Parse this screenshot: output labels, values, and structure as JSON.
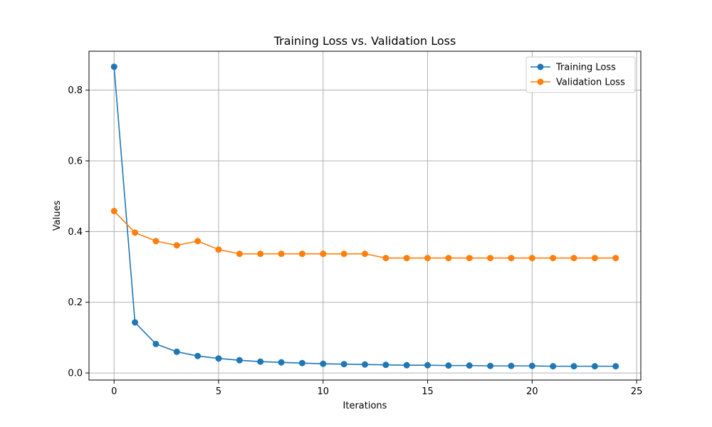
{
  "chart_data": {
    "type": "line",
    "title": "Training Loss vs. Validation Loss",
    "xlabel": "Iterations",
    "ylabel": "Values",
    "x": [
      0,
      1,
      2,
      3,
      4,
      5,
      6,
      7,
      8,
      9,
      10,
      11,
      12,
      13,
      14,
      15,
      16,
      17,
      18,
      19,
      20,
      21,
      22,
      23,
      24
    ],
    "xlim": [
      -1.2,
      25.2
    ],
    "ylim": [
      -0.02,
      0.91
    ],
    "xticks": [
      0,
      5,
      10,
      15,
      20,
      25
    ],
    "yticks": [
      0.0,
      0.2,
      0.4,
      0.6,
      0.8
    ],
    "xtick_labels": [
      "0",
      "5",
      "10",
      "15",
      "20",
      "25"
    ],
    "ytick_labels": [
      "0.0",
      "0.2",
      "0.4",
      "0.6",
      "0.8"
    ],
    "grid": true,
    "legend_position": "top-right",
    "series": [
      {
        "name": "Training Loss",
        "color": "#1f77b4",
        "marker": "circle",
        "values": [
          0.866,
          0.143,
          0.082,
          0.06,
          0.048,
          0.041,
          0.036,
          0.032,
          0.03,
          0.028,
          0.026,
          0.025,
          0.024,
          0.023,
          0.022,
          0.022,
          0.021,
          0.021,
          0.02,
          0.02,
          0.02,
          0.019,
          0.019,
          0.019,
          0.019
        ]
      },
      {
        "name": "Validation Loss",
        "color": "#ff7f0e",
        "marker": "circle",
        "values": [
          0.458,
          0.397,
          0.373,
          0.361,
          0.373,
          0.349,
          0.337,
          0.337,
          0.337,
          0.337,
          0.337,
          0.337,
          0.337,
          0.325,
          0.325,
          0.325,
          0.325,
          0.325,
          0.325,
          0.325,
          0.325,
          0.325,
          0.325,
          0.325,
          0.325
        ]
      }
    ]
  }
}
